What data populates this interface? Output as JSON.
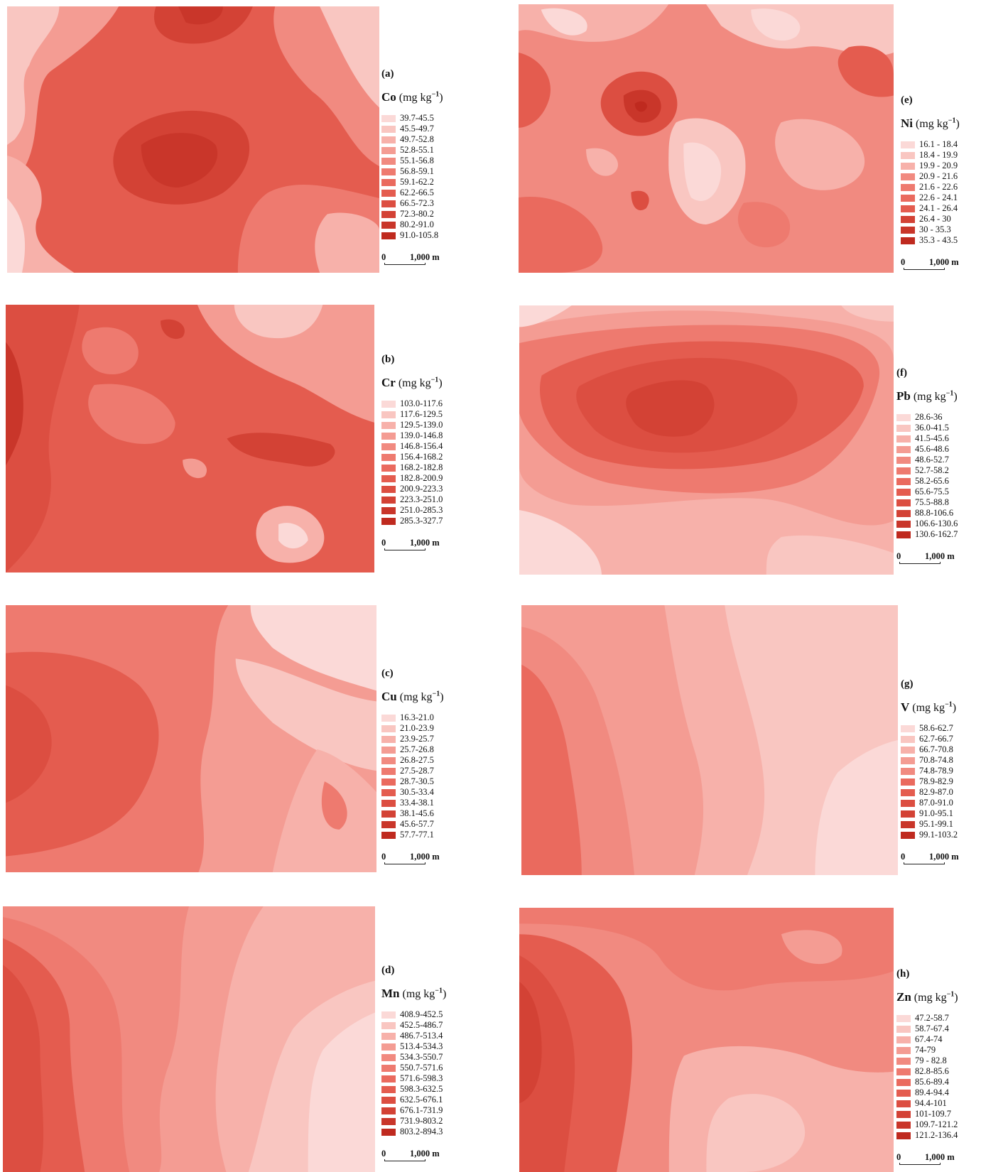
{
  "panels": [
    {
      "id": "a",
      "letter": "(a)",
      "element": "Co",
      "unit_prefix": "(mg kg",
      "unit_exp": "−1",
      "unit_suffix": ")",
      "classes": [
        "39.7-45.5",
        "45.5-49.7",
        "49.7-52.8",
        "52.8-55.1",
        "55.1-56.8",
        "56.8-59.1",
        "59.1-62.2",
        "62.2-66.5",
        "66.5-72.3",
        "72.3-80.2",
        "80.2-91.0",
        "91.0-105.8"
      ],
      "scale": {
        "zero": "0",
        "distance": "1,000 m"
      }
    },
    {
      "id": "b",
      "letter": "(b)",
      "element": "Cr",
      "unit_prefix": "(mg kg",
      "unit_exp": "−1",
      "unit_suffix": ")",
      "classes": [
        "103.0-117.6",
        "117.6-129.5",
        "129.5-139.0",
        "139.0-146.8",
        "146.8-156.4",
        "156.4-168.2",
        "168.2-182.8",
        "182.8-200.9",
        "200.9-223.3",
        "223.3-251.0",
        "251.0-285.3",
        "285.3-327.7"
      ],
      "scale": {
        "zero": "0",
        "distance": "1,000 m"
      }
    },
    {
      "id": "c",
      "letter": "(c)",
      "element": "Cu",
      "unit_prefix": "(mg kg",
      "unit_exp": "−1",
      "unit_suffix": ")",
      "classes": [
        "16.3-21.0",
        "21.0-23.9",
        "23.9-25.7",
        "25.7-26.8",
        "26.8-27.5",
        "27.5-28.7",
        "28.7-30.5",
        "30.5-33.4",
        "33.4-38.1",
        "38.1-45.6",
        "45.6-57.7",
        "57.7-77.1"
      ],
      "scale": {
        "zero": "0",
        "distance": "1,000 m"
      }
    },
    {
      "id": "d",
      "letter": "(d)",
      "element": "Mn",
      "unit_prefix": "(mg kg",
      "unit_exp": "−1",
      "unit_suffix": ")",
      "classes": [
        "408.9-452.5",
        "452.5-486.7",
        "486.7-513.4",
        "513.4-534.3",
        "534.3-550.7",
        "550.7-571.6",
        "571.6-598.3",
        "598.3-632.5",
        "632.5-676.1",
        "676.1-731.9",
        "731.9-803.2",
        "803.2-894.3"
      ],
      "scale": {
        "zero": "0",
        "distance": "1,000 m"
      }
    },
    {
      "id": "e",
      "letter": "(e)",
      "element": "Ni",
      "unit_prefix": "(mg kg",
      "unit_exp": "−1",
      "unit_suffix": ")",
      "classes": [
        "16.1 - 18.4",
        "18.4 - 19.9",
        "19.9 - 20.9",
        "20.9 - 21.6",
        "21.6 - 22.6",
        "22.6 - 24.1",
        "24.1 - 26.4",
        "26.4 - 30",
        "30 - 35.3",
        "35.3 - 43.5"
      ],
      "scale": {
        "zero": "0",
        "distance": "1,000 m"
      }
    },
    {
      "id": "f",
      "letter": "(f)",
      "element": "Pb",
      "unit_prefix": "(mg kg",
      "unit_exp": "−1",
      "unit_suffix": ")",
      "classes": [
        "28.6-36",
        "36.0-41.5",
        "41.5-45.6",
        "45.6-48.6",
        "48.6-52.7",
        "52.7-58.2",
        "58.2-65.6",
        "65.6-75.5",
        "75.5-88.8",
        "88.8-106.6",
        "106.6-130.6",
        "130.6-162.7"
      ],
      "scale": {
        "zero": "0",
        "distance": "1,000 m"
      }
    },
    {
      "id": "g",
      "letter": "(g)",
      "element": "V",
      "unit_prefix": "(mg kg",
      "unit_exp": "−1",
      "unit_suffix": ")",
      "classes": [
        "58.6-62.7",
        "62.7-66.7",
        "66.7-70.8",
        "70.8-74.8",
        "74.8-78.9",
        "78.9-82.9",
        "82.9-87.0",
        "87.0-91.0",
        "91.0-95.1",
        "95.1-99.1",
        "99.1-103.2"
      ],
      "scale": {
        "zero": "0",
        "distance": "1,000 m"
      }
    },
    {
      "id": "h",
      "letter": "(h)",
      "element": "Zn",
      "unit_prefix": "(mg kg",
      "unit_exp": "−1",
      "unit_suffix": ")",
      "classes": [
        "47.2-58.7",
        "58.7-67.4",
        "67.4-74",
        "74-79",
        "79 - 82.8",
        "82.8-85.6",
        "85.6-89.4",
        "89.4-94.4",
        "94.4-101",
        "101-109.7",
        "109.7-121.2",
        "121.2-136.4"
      ],
      "scale": {
        "zero": "0",
        "distance": "1,000 m"
      }
    }
  ],
  "palette": [
    "#fbd9d7",
    "#f9c6c1",
    "#f7b1aa",
    "#f49c93",
    "#f18a80",
    "#ee7a6f",
    "#ea6a5e",
    "#e45c4f",
    "#dc4e41",
    "#d34235",
    "#c9362a",
    "#bf2a1f"
  ]
}
